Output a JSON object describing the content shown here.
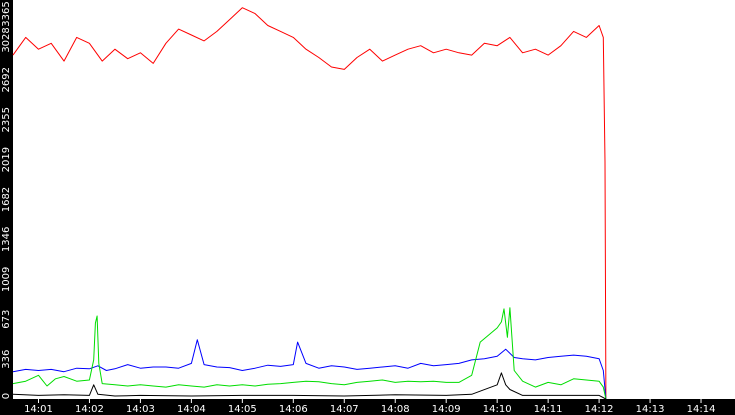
{
  "chart_data": {
    "type": "line",
    "title": "",
    "xlabel": "",
    "ylabel": "",
    "ylim": [
      0,
      3365
    ],
    "yticks": [
      {
        "value": 0,
        "label": "0"
      },
      {
        "value": 336,
        "label": "336"
      },
      {
        "value": 673,
        "label": "673"
      },
      {
        "value": 1009,
        "label": "1009"
      },
      {
        "value": 1346,
        "label": "1346"
      },
      {
        "value": 1682,
        "label": "1682"
      },
      {
        "value": 2019,
        "label": "2019"
      },
      {
        "value": 2355,
        "label": "2355"
      },
      {
        "value": 2692,
        "label": "2692"
      },
      {
        "value": 3028,
        "label": "3028"
      },
      {
        "value": 3365,
        "label": "3365"
      }
    ],
    "xlim": [
      "14:00:30",
      "14:14:40"
    ],
    "xticks": [
      "14:01",
      "14:02",
      "14:03",
      "14:04",
      "14:05",
      "14:06",
      "14:07",
      "14:08",
      "14:09",
      "14:10",
      "14:11",
      "14:12",
      "14:13",
      "14:14"
    ],
    "grid": false,
    "legend": "none",
    "series": [
      {
        "color": "#ff0000",
        "points": [
          [
            "14:00:30",
            2900
          ],
          [
            "14:00:45",
            3050
          ],
          [
            "14:01:00",
            2950
          ],
          [
            "14:01:15",
            3000
          ],
          [
            "14:01:30",
            2850
          ],
          [
            "14:01:45",
            3050
          ],
          [
            "14:02:00",
            3000
          ],
          [
            "14:02:15",
            2850
          ],
          [
            "14:02:30",
            2950
          ],
          [
            "14:02:45",
            2870
          ],
          [
            "14:03:00",
            2920
          ],
          [
            "14:03:15",
            2830
          ],
          [
            "14:03:30",
            3000
          ],
          [
            "14:03:45",
            3120
          ],
          [
            "14:04:00",
            3070
          ],
          [
            "14:04:15",
            3020
          ],
          [
            "14:04:30",
            3100
          ],
          [
            "14:04:45",
            3200
          ],
          [
            "14:05:00",
            3300
          ],
          [
            "14:05:15",
            3250
          ],
          [
            "14:05:30",
            3150
          ],
          [
            "14:05:45",
            3100
          ],
          [
            "14:06:00",
            3050
          ],
          [
            "14:06:15",
            2950
          ],
          [
            "14:06:30",
            2880
          ],
          [
            "14:06:45",
            2800
          ],
          [
            "14:07:00",
            2780
          ],
          [
            "14:07:15",
            2880
          ],
          [
            "14:07:30",
            2950
          ],
          [
            "14:07:45",
            2850
          ],
          [
            "14:08:00",
            2900
          ],
          [
            "14:08:15",
            2950
          ],
          [
            "14:08:30",
            2980
          ],
          [
            "14:08:45",
            2920
          ],
          [
            "14:09:00",
            2950
          ],
          [
            "14:09:15",
            2920
          ],
          [
            "14:09:30",
            2900
          ],
          [
            "14:09:45",
            3000
          ],
          [
            "14:10:00",
            2980
          ],
          [
            "14:10:15",
            3050
          ],
          [
            "14:10:30",
            2920
          ],
          [
            "14:10:45",
            2950
          ],
          [
            "14:11:00",
            2900
          ],
          [
            "14:11:15",
            2980
          ],
          [
            "14:11:30",
            3100
          ],
          [
            "14:11:45",
            3050
          ],
          [
            "14:12:00",
            3150
          ],
          [
            "14:12:05",
            3050
          ],
          [
            "14:12:07",
            2000
          ],
          [
            "14:12:08",
            0
          ]
        ]
      },
      {
        "color": "#0000ff",
        "points": [
          [
            "14:00:30",
            230
          ],
          [
            "14:00:45",
            250
          ],
          [
            "14:01:00",
            240
          ],
          [
            "14:01:15",
            250
          ],
          [
            "14:01:30",
            230
          ],
          [
            "14:01:45",
            260
          ],
          [
            "14:02:00",
            255
          ],
          [
            "14:02:10",
            280
          ],
          [
            "14:02:20",
            240
          ],
          [
            "14:02:30",
            255
          ],
          [
            "14:02:45",
            290
          ],
          [
            "14:03:00",
            260
          ],
          [
            "14:03:15",
            270
          ],
          [
            "14:03:30",
            270
          ],
          [
            "14:03:45",
            260
          ],
          [
            "14:04:00",
            300
          ],
          [
            "14:04:07",
            500
          ],
          [
            "14:04:15",
            290
          ],
          [
            "14:04:30",
            270
          ],
          [
            "14:04:45",
            265
          ],
          [
            "14:05:00",
            240
          ],
          [
            "14:05:15",
            260
          ],
          [
            "14:05:30",
            285
          ],
          [
            "14:05:45",
            275
          ],
          [
            "14:06:00",
            290
          ],
          [
            "14:06:05",
            480
          ],
          [
            "14:06:15",
            300
          ],
          [
            "14:06:30",
            260
          ],
          [
            "14:06:45",
            280
          ],
          [
            "14:07:00",
            270
          ],
          [
            "14:07:15",
            250
          ],
          [
            "14:07:30",
            260
          ],
          [
            "14:07:45",
            270
          ],
          [
            "14:08:00",
            280
          ],
          [
            "14:08:15",
            260
          ],
          [
            "14:08:30",
            300
          ],
          [
            "14:08:45",
            280
          ],
          [
            "14:09:00",
            290
          ],
          [
            "14:09:15",
            300
          ],
          [
            "14:09:30",
            330
          ],
          [
            "14:09:45",
            340
          ],
          [
            "14:10:00",
            360
          ],
          [
            "14:10:10",
            420
          ],
          [
            "14:10:20",
            350
          ],
          [
            "14:10:30",
            340
          ],
          [
            "14:10:45",
            330
          ],
          [
            "14:11:00",
            350
          ],
          [
            "14:11:15",
            360
          ],
          [
            "14:11:30",
            370
          ],
          [
            "14:11:45",
            360
          ],
          [
            "14:12:00",
            340
          ],
          [
            "14:12:05",
            240
          ],
          [
            "14:12:08",
            0
          ]
        ]
      },
      {
        "color": "#00dd00",
        "points": [
          [
            "14:00:30",
            130
          ],
          [
            "14:00:45",
            150
          ],
          [
            "14:01:00",
            200
          ],
          [
            "14:01:10",
            110
          ],
          [
            "14:01:20",
            170
          ],
          [
            "14:01:30",
            190
          ],
          [
            "14:01:45",
            150
          ],
          [
            "14:02:00",
            160
          ],
          [
            "14:02:05",
            330
          ],
          [
            "14:02:07",
            640
          ],
          [
            "14:02:09",
            700
          ],
          [
            "14:02:11",
            300
          ],
          [
            "14:02:15",
            130
          ],
          [
            "14:02:30",
            120
          ],
          [
            "14:02:45",
            110
          ],
          [
            "14:03:00",
            120
          ],
          [
            "14:03:15",
            110
          ],
          [
            "14:03:30",
            100
          ],
          [
            "14:03:45",
            120
          ],
          [
            "14:04:00",
            110
          ],
          [
            "14:04:15",
            100
          ],
          [
            "14:04:30",
            120
          ],
          [
            "14:04:45",
            110
          ],
          [
            "14:05:00",
            120
          ],
          [
            "14:05:15",
            110
          ],
          [
            "14:05:30",
            125
          ],
          [
            "14:05:45",
            130
          ],
          [
            "14:06:00",
            140
          ],
          [
            "14:06:15",
            150
          ],
          [
            "14:06:30",
            145
          ],
          [
            "14:06:45",
            130
          ],
          [
            "14:07:00",
            120
          ],
          [
            "14:07:15",
            140
          ],
          [
            "14:07:30",
            150
          ],
          [
            "14:07:45",
            160
          ],
          [
            "14:08:00",
            140
          ],
          [
            "14:08:15",
            150
          ],
          [
            "14:08:30",
            145
          ],
          [
            "14:08:45",
            150
          ],
          [
            "14:09:00",
            140
          ],
          [
            "14:09:15",
            140
          ],
          [
            "14:09:30",
            200
          ],
          [
            "14:09:40",
            480
          ],
          [
            "14:09:50",
            540
          ],
          [
            "14:10:00",
            600
          ],
          [
            "14:10:05",
            650
          ],
          [
            "14:10:08",
            760
          ],
          [
            "14:10:12",
            520
          ],
          [
            "14:10:15",
            770
          ],
          [
            "14:10:20",
            240
          ],
          [
            "14:10:30",
            150
          ],
          [
            "14:10:45",
            100
          ],
          [
            "14:11:00",
            140
          ],
          [
            "14:11:15",
            120
          ],
          [
            "14:11:30",
            170
          ],
          [
            "14:11:45",
            160
          ],
          [
            "14:12:00",
            150
          ],
          [
            "14:12:05",
            100
          ],
          [
            "14:12:08",
            0
          ]
        ]
      },
      {
        "color": "#000000",
        "points": [
          [
            "14:00:30",
            40
          ],
          [
            "14:01:00",
            30
          ],
          [
            "14:01:30",
            35
          ],
          [
            "14:02:00",
            30
          ],
          [
            "14:02:05",
            120
          ],
          [
            "14:02:10",
            40
          ],
          [
            "14:02:30",
            25
          ],
          [
            "14:03:00",
            30
          ],
          [
            "14:04:00",
            25
          ],
          [
            "14:05:00",
            30
          ],
          [
            "14:06:00",
            30
          ],
          [
            "14:07:00",
            25
          ],
          [
            "14:08:00",
            35
          ],
          [
            "14:09:00",
            30
          ],
          [
            "14:09:30",
            40
          ],
          [
            "14:10:00",
            120
          ],
          [
            "14:10:05",
            220
          ],
          [
            "14:10:10",
            120
          ],
          [
            "14:10:15",
            80
          ],
          [
            "14:10:30",
            30
          ],
          [
            "14:11:00",
            30
          ],
          [
            "14:11:30",
            30
          ],
          [
            "14:12:00",
            30
          ],
          [
            "14:12:08",
            0
          ]
        ]
      }
    ]
  }
}
